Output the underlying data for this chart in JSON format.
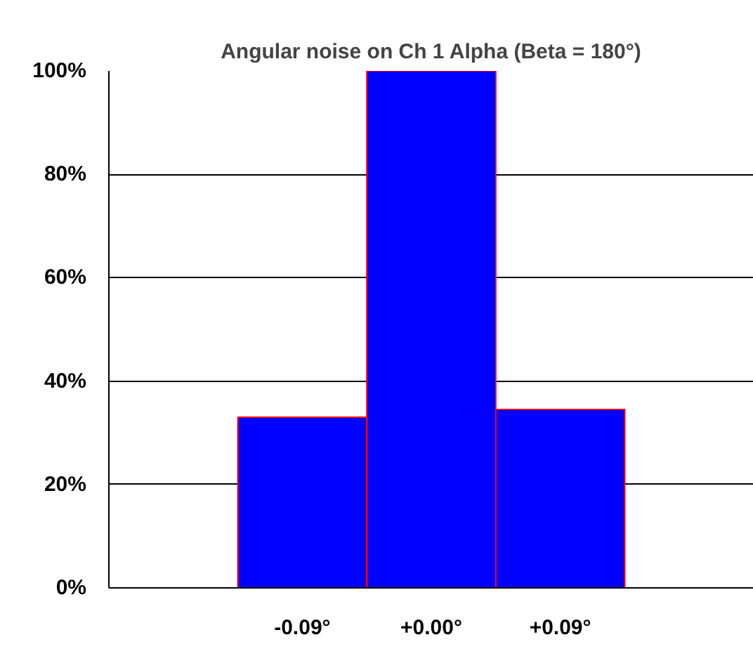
{
  "chart_data": {
    "type": "bar",
    "title": "Angular noise on Ch 1 Alpha (Beta = 180°)",
    "categories": [
      null,
      "-0.09°",
      "+0.00°",
      "+0.09°",
      null
    ],
    "values": [
      null,
      33,
      100,
      34.5,
      null
    ],
    "color": "#0000ff",
    "ylim": [
      0,
      100
    ],
    "yticks": [
      {
        "value": 0,
        "label": "0%"
      },
      {
        "value": 20,
        "label": "20%"
      },
      {
        "value": 40,
        "label": "40%"
      },
      {
        "value": 60,
        "label": "60%"
      },
      {
        "value": 80,
        "label": "80%"
      },
      {
        "value": 100,
        "label": "100%"
      }
    ],
    "grid": "y"
  }
}
